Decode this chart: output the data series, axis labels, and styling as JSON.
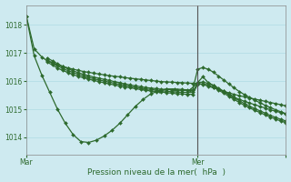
{
  "xlabel": "Pression niveau de la mer(  hPa  )",
  "ylim": [
    1013.4,
    1018.7
  ],
  "xlim": [
    0,
    100
  ],
  "yticks": [
    1014,
    1015,
    1016,
    1017,
    1018
  ],
  "xtick_positions": [
    0,
    66,
    100
  ],
  "xtick_labels": [
    "Mar",
    "Mer",
    ""
  ],
  "bg_color": "#ceeaf0",
  "grid_color": "#a8d8e0",
  "line_color": "#2d6a2d",
  "marker": "D",
  "markersize": 2.0,
  "linewidth": 0.9,
  "vline_x": 66,
  "vline_color": "#555555",
  "series": [
    {
      "x": [
        0,
        3,
        6,
        8,
        10,
        12,
        14,
        16,
        18,
        20,
        22,
        24,
        26,
        28,
        30,
        32,
        34,
        36,
        38,
        40,
        42,
        44,
        46,
        48,
        50,
        52,
        54,
        56,
        58,
        60,
        62,
        64,
        66,
        68,
        70,
        72,
        74,
        76,
        78,
        80,
        82,
        84,
        86,
        88,
        90,
        92,
        94,
        96,
        98,
        100
      ],
      "y": [
        1018.3,
        1017.15,
        1016.85,
        1016.72,
        1016.65,
        1016.58,
        1016.52,
        1016.47,
        1016.42,
        1016.38,
        1016.34,
        1016.31,
        1016.28,
        1016.25,
        1016.22,
        1016.19,
        1016.17,
        1016.15,
        1016.12,
        1016.1,
        1016.08,
        1016.06,
        1016.04,
        1016.02,
        1016.0,
        1015.98,
        1015.97,
        1015.96,
        1015.95,
        1015.94,
        1015.93,
        1015.92,
        1015.92,
        1015.88,
        1015.82,
        1015.76,
        1015.7,
        1015.64,
        1015.58,
        1015.53,
        1015.48,
        1015.44,
        1015.4,
        1015.36,
        1015.32,
        1015.28,
        1015.24,
        1015.2,
        1015.16,
        1015.12
      ]
    },
    {
      "x": [
        0,
        3,
        6,
        9,
        12,
        15,
        18,
        21,
        24,
        27,
        30,
        33,
        36,
        39,
        42,
        45,
        48,
        51,
        54,
        57,
        60,
        63,
        66,
        68,
        70,
        72,
        74,
        76,
        78,
        80,
        82,
        84,
        86,
        88,
        90,
        92,
        94,
        96,
        98,
        100
      ],
      "y": [
        1018.3,
        1016.9,
        1016.2,
        1015.6,
        1015.0,
        1014.5,
        1014.1,
        1013.85,
        1013.82,
        1013.9,
        1014.05,
        1014.25,
        1014.5,
        1014.8,
        1015.1,
        1015.35,
        1015.55,
        1015.65,
        1015.72,
        1015.72,
        1015.7,
        1015.68,
        1015.95,
        1016.15,
        1015.95,
        1015.85,
        1015.72,
        1015.62,
        1015.52,
        1015.43,
        1015.35,
        1015.28,
        1015.22,
        1015.16,
        1015.1,
        1015.04,
        1014.98,
        1014.93,
        1014.88,
        1014.84
      ]
    },
    {
      "x": [
        8,
        10,
        12,
        14,
        16,
        18,
        20,
        22,
        24,
        26,
        28,
        30,
        32,
        34,
        36,
        38,
        40,
        42,
        44,
        46,
        48,
        50,
        52,
        54,
        56,
        58,
        60,
        62,
        64,
        66,
        68,
        70,
        72,
        74,
        76,
        78,
        80,
        82,
        84,
        86,
        88,
        90,
        92,
        94,
        96,
        98,
        100
      ],
      "y": [
        1016.82,
        1016.72,
        1016.62,
        1016.52,
        1016.44,
        1016.36,
        1016.3,
        1016.24,
        1016.19,
        1016.14,
        1016.1,
        1016.06,
        1016.02,
        1015.98,
        1015.94,
        1015.9,
        1015.86,
        1015.83,
        1015.8,
        1015.77,
        1015.75,
        1015.73,
        1015.71,
        1015.7,
        1015.69,
        1015.68,
        1015.67,
        1015.67,
        1015.67,
        1016.42,
        1016.48,
        1016.42,
        1016.32,
        1016.18,
        1016.04,
        1015.9,
        1015.76,
        1015.63,
        1015.52,
        1015.42,
        1015.32,
        1015.23,
        1015.14,
        1015.06,
        1014.98,
        1014.91,
        1014.84
      ]
    },
    {
      "x": [
        8,
        10,
        12,
        14,
        16,
        18,
        20,
        22,
        24,
        26,
        28,
        30,
        32,
        34,
        36,
        38,
        40,
        42,
        44,
        46,
        48,
        50,
        52,
        54,
        56,
        58,
        60,
        62,
        64,
        66,
        68,
        70,
        72,
        74,
        76,
        78,
        80,
        82,
        84,
        86,
        88,
        90,
        92,
        94,
        96,
        98,
        100
      ],
      "y": [
        1016.75,
        1016.64,
        1016.54,
        1016.45,
        1016.37,
        1016.3,
        1016.24,
        1016.18,
        1016.13,
        1016.08,
        1016.04,
        1016.0,
        1015.96,
        1015.92,
        1015.88,
        1015.85,
        1015.81,
        1015.78,
        1015.75,
        1015.72,
        1015.7,
        1015.68,
        1015.66,
        1015.64,
        1015.62,
        1015.61,
        1015.6,
        1015.6,
        1015.6,
        1015.95,
        1015.96,
        1015.92,
        1015.85,
        1015.75,
        1015.64,
        1015.52,
        1015.41,
        1015.3,
        1015.2,
        1015.11,
        1015.02,
        1014.94,
        1014.86,
        1014.78,
        1014.71,
        1014.64,
        1014.58
      ]
    },
    {
      "x": [
        8,
        10,
        12,
        14,
        16,
        18,
        20,
        22,
        24,
        26,
        28,
        30,
        32,
        34,
        36,
        38,
        40,
        42,
        44,
        46,
        48,
        50,
        52,
        54,
        56,
        58,
        60,
        62,
        64,
        66,
        68,
        70,
        72,
        74,
        76,
        78,
        80,
        82,
        84,
        86,
        88,
        90,
        92,
        94,
        96,
        98,
        100
      ],
      "y": [
        1016.68,
        1016.57,
        1016.46,
        1016.38,
        1016.3,
        1016.23,
        1016.17,
        1016.12,
        1016.07,
        1016.02,
        1015.98,
        1015.94,
        1015.9,
        1015.86,
        1015.82,
        1015.79,
        1015.76,
        1015.73,
        1015.7,
        1015.67,
        1015.65,
        1015.63,
        1015.61,
        1015.59,
        1015.57,
        1015.55,
        1015.54,
        1015.53,
        1015.53,
        1015.88,
        1015.9,
        1015.86,
        1015.78,
        1015.68,
        1015.57,
        1015.46,
        1015.35,
        1015.24,
        1015.14,
        1015.05,
        1014.96,
        1014.88,
        1014.8,
        1014.72,
        1014.65,
        1014.58,
        1014.52
      ]
    }
  ]
}
